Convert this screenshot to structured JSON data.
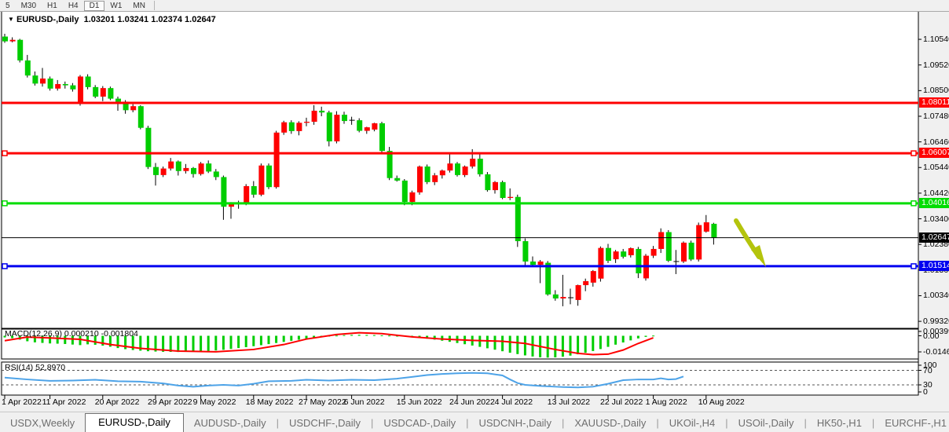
{
  "toolbar": {
    "timeframes": [
      "5",
      "M30",
      "H1",
      "H4",
      "D1",
      "W1",
      "MN"
    ],
    "active_timeframe": "D1"
  },
  "chart": {
    "symbol_title": "EURUSD-,Daily",
    "ohlc_text": "1.03201 1.03241 1.02374 1.02647",
    "dropdown_icon": "down-triangle"
  },
  "colors": {
    "up_candle": "#fe0000",
    "down_candle": "#00cd00",
    "wick": "#000000",
    "hline_red": "#fe0000",
    "hline_green": "#00dd00",
    "hline_blue": "#0000f0",
    "current_price_line": "#000000",
    "current_price_badge": "#000000",
    "macd_hist": "#00cd00",
    "macd_signal": "#fe0000",
    "rsi_line": "#4da3e8",
    "arrow": "#b4c40c",
    "pane_bg": "#ffffff",
    "frame": "#000000"
  },
  "price_axis": {
    "ticks": [
      "1.10540",
      "1.09520",
      "1.08500",
      "1.07480",
      "1.06460",
      "1.05440",
      "1.04420",
      "1.03400",
      "1.02380",
      "1.01360",
      "1.00340",
      "0.99320"
    ]
  },
  "hlines": [
    {
      "price": 1.08011,
      "label": "1.08011",
      "color_key": "hline_red",
      "thickness": 3,
      "handles": []
    },
    {
      "price": 1.06007,
      "label": "1.06007",
      "color_key": "hline_red",
      "thickness": 3,
      "handles": [
        "left",
        "right"
      ]
    },
    {
      "price": 1.04016,
      "label": "1.04016",
      "color_key": "hline_green",
      "thickness": 3,
      "handles": [
        "left",
        "right"
      ]
    },
    {
      "price": 1.02647,
      "label": "1.02647",
      "color_key": "current_price_line",
      "thickness": 1,
      "handles": []
    },
    {
      "price": 1.01514,
      "label": "1.01514",
      "color_key": "hline_blue",
      "thickness": 3,
      "handles": [
        "left",
        "right"
      ]
    }
  ],
  "chart_data": {
    "type": "candlestick",
    "symbol": "EURUSD",
    "period": "Daily",
    "candles_ohlc": [
      [
        1.1065,
        1.1076,
        1.104,
        1.1046
      ],
      [
        1.1046,
        1.1062,
        1.1042,
        1.1052
      ],
      [
        1.1052,
        1.1056,
        1.0962,
        1.097
      ],
      [
        1.097,
        1.0992,
        1.0902,
        1.091
      ],
      [
        1.091,
        1.0926,
        1.087,
        1.0878
      ],
      [
        1.0878,
        1.094,
        1.0866,
        1.0898
      ],
      [
        1.0898,
        1.0906,
        1.085,
        1.0858
      ],
      [
        1.0858,
        1.0892,
        1.085,
        1.0876
      ],
      [
        1.0876,
        1.0886,
        1.0858,
        1.0871
      ],
      [
        1.0871,
        1.088,
        1.0846,
        1.0855
      ],
      [
        1.08,
        1.0912,
        1.079,
        1.0906
      ],
      [
        1.0906,
        1.0915,
        1.0855,
        1.0864
      ],
      [
        1.0864,
        1.0872,
        1.082,
        1.0826
      ],
      [
        1.0826,
        1.0868,
        1.0808,
        1.086
      ],
      [
        1.086,
        1.0866,
        1.0812,
        1.0818
      ],
      [
        1.0818,
        1.0826,
        1.077,
        1.0806
      ],
      [
        1.0806,
        1.0812,
        1.0758,
        1.0772
      ],
      [
        1.0772,
        1.0796,
        1.0764,
        1.0788
      ],
      [
        1.0788,
        1.0792,
        1.0696,
        1.0702
      ],
      [
        1.0702,
        1.071,
        1.0538,
        1.0546
      ],
      [
        1.0546,
        1.0562,
        1.0472,
        1.0514
      ],
      [
        1.0514,
        1.0548,
        1.0506,
        1.054
      ],
      [
        1.054,
        1.0582,
        1.0532,
        1.0568
      ],
      [
        1.0568,
        1.0572,
        1.0512,
        1.053
      ],
      [
        1.053,
        1.0558,
        1.052,
        1.0542
      ],
      [
        1.0542,
        1.0546,
        1.0504,
        1.0518
      ],
      [
        1.0518,
        1.0566,
        1.0512,
        1.056
      ],
      [
        1.056,
        1.0572,
        1.0522,
        1.0528
      ],
      [
        1.0528,
        1.0538,
        1.0494,
        1.0506
      ],
      [
        1.0506,
        1.0512,
        1.0336,
        1.0388
      ],
      [
        1.0388,
        1.0406,
        1.034,
        1.0398
      ],
      [
        1.0398,
        1.0412,
        1.038,
        1.04
      ],
      [
        1.04,
        1.0478,
        1.0394,
        1.047
      ],
      [
        1.047,
        1.049,
        1.0424,
        1.0436
      ],
      [
        1.0436,
        1.056,
        1.043,
        1.0552
      ],
      [
        1.0552,
        1.056,
        1.0458,
        1.0466
      ],
      [
        1.0466,
        1.069,
        1.046,
        1.0683
      ],
      [
        1.0683,
        1.073,
        1.0674,
        1.0724
      ],
      [
        1.0724,
        1.0732,
        1.0678,
        1.0689
      ],
      [
        1.0689,
        1.0728,
        1.0672,
        1.0722
      ],
      [
        1.0722,
        1.0742,
        1.0708,
        1.0726
      ],
      [
        1.0726,
        1.0792,
        1.0714,
        1.077
      ],
      [
        1.077,
        1.0786,
        1.0748,
        1.0763
      ],
      [
        1.0763,
        1.077,
        1.0628,
        1.0648
      ],
      [
        1.0648,
        1.0768,
        1.064,
        1.0754
      ],
      [
        1.0754,
        1.0766,
        1.0718,
        1.0729
      ],
      [
        1.0729,
        1.0746,
        1.0714,
        1.0732
      ],
      [
        1.0732,
        1.074,
        1.0684,
        1.069
      ],
      [
        1.069,
        1.0706,
        1.0678,
        1.0704
      ],
      [
        1.0695,
        1.0722,
        1.0688,
        1.072
      ],
      [
        1.072,
        1.0726,
        1.0598,
        1.061
      ],
      [
        1.061,
        1.0626,
        1.0494,
        1.0502
      ],
      [
        1.0502,
        1.0512,
        1.0488,
        1.0492
      ],
      [
        1.0492,
        1.0498,
        1.0394,
        1.0407
      ],
      [
        1.0407,
        1.0452,
        1.0394,
        1.0445
      ],
      [
        1.0445,
        1.0552,
        1.0436,
        1.0548
      ],
      [
        1.0548,
        1.0556,
        1.0478,
        1.0486
      ],
      [
        1.0486,
        1.0522,
        1.0474,
        1.0513
      ],
      [
        1.0513,
        1.0536,
        1.05,
        1.0532
      ],
      [
        1.0532,
        1.0601,
        1.0524,
        1.056
      ],
      [
        1.056,
        1.0566,
        1.0508,
        1.0514
      ],
      [
        1.0514,
        1.0552,
        1.0506,
        1.0548
      ],
      [
        1.0548,
        1.0617,
        1.054,
        1.0579
      ],
      [
        1.0579,
        1.06,
        1.0508,
        1.0517
      ],
      [
        1.0517,
        1.0526,
        1.0448,
        1.0454
      ],
      [
        1.0454,
        1.049,
        1.044,
        1.0486
      ],
      [
        1.0486,
        1.0492,
        1.0418,
        1.0423
      ],
      [
        1.0423,
        1.0461,
        1.0414,
        1.0427
      ],
      [
        1.0427,
        1.0436,
        1.0228,
        1.0251
      ],
      [
        1.0251,
        1.0262,
        1.0153,
        1.017
      ],
      [
        1.017,
        1.019,
        1.015,
        1.0157
      ],
      [
        1.0157,
        1.0176,
        1.0084,
        1.017
      ],
      [
        1.0165,
        1.0172,
        1.0034,
        1.0039
      ],
      [
        1.0039,
        1.0056,
        1.0014,
        1.0023
      ],
      [
        1.0023,
        1.0117,
        0.9992,
        1.0029
      ],
      [
        1.0029,
        1.0062,
        1.0,
        1.0026
      ],
      [
        1.0017,
        1.0078,
        0.9994,
        1.0076
      ],
      [
        1.0076,
        1.0102,
        1.0052,
        1.0092
      ],
      [
        1.0086,
        1.0136,
        1.007,
        1.0132
      ],
      [
        1.0102,
        1.023,
        1.009,
        1.0224
      ],
      [
        1.0224,
        1.024,
        1.0164,
        1.0173
      ],
      [
        1.0179,
        1.0216,
        1.0164,
        1.021
      ],
      [
        1.021,
        1.022,
        1.0182,
        1.0189
      ],
      [
        1.0195,
        1.0226,
        1.0186,
        1.0223
      ],
      [
        1.022,
        1.0228,
        1.0104,
        1.0123
      ],
      [
        1.0103,
        1.02,
        1.0094,
        1.0193
      ],
      [
        1.0193,
        1.0232,
        1.0184,
        1.022
      ],
      [
        1.022,
        1.0302,
        1.0204,
        1.0287
      ],
      [
        1.0287,
        1.0295,
        1.0168,
        1.0173
      ],
      [
        1.0173,
        1.0216,
        1.012,
        1.017
      ],
      [
        1.017,
        1.025,
        1.0164,
        1.0245
      ],
      [
        1.0245,
        1.0253,
        1.0172,
        1.0178
      ],
      [
        1.0178,
        1.0325,
        1.017,
        1.0315
      ],
      [
        1.0289,
        1.0355,
        1.0285,
        1.0326
      ],
      [
        1.03201,
        1.03241,
        1.02374,
        1.02647
      ]
    ],
    "macd": {
      "label": "MACD(12,26,9)",
      "values_text": "0.000210 -0.001804",
      "axis_labels": [
        "0.00399",
        "0.00",
        "-0.014693"
      ],
      "hist": [
        -0.0015,
        -0.0022,
        -0.0035,
        -0.005,
        -0.006,
        -0.0065,
        -0.007,
        -0.0072,
        -0.0075,
        -0.008,
        -0.0085,
        -0.0078,
        -0.0082,
        -0.009,
        -0.01,
        -0.0112,
        -0.0122,
        -0.013,
        -0.0136,
        -0.0141,
        -0.0144,
        -0.0146,
        -0.0147,
        -0.0148,
        -0.0147,
        -0.0145,
        -0.0143,
        -0.0139,
        -0.0134,
        -0.0128,
        -0.012,
        -0.0112,
        -0.0104,
        -0.0095,
        -0.0086,
        -0.0076,
        -0.0066,
        -0.0056,
        -0.0046,
        -0.0036,
        -0.0027,
        -0.0018,
        -0.001,
        -0.0004,
        0.0002,
        0.0006,
        0.0008,
        0.0009,
        0.0008,
        0.0006,
        0.0004,
        0.0002,
        0.0,
        -0.0004,
        -0.001,
        -0.0018,
        -0.0026,
        -0.0035,
        -0.0045,
        -0.0055,
        -0.0066,
        -0.0077,
        -0.0089,
        -0.0101,
        -0.0114,
        -0.0127,
        -0.0141,
        -0.0155,
        -0.0167,
        -0.0179,
        -0.0189,
        -0.0196,
        -0.0199,
        -0.0197,
        -0.0191,
        -0.0181,
        -0.0169,
        -0.0155,
        -0.0139,
        -0.0121,
        -0.0101,
        -0.0081,
        -0.0061,
        -0.0042,
        -0.0024,
        -0.001,
        0.0002
      ],
      "signal_points": [
        [
          0,
          -0.0045
        ],
        [
          3,
          -0.0012
        ],
        [
          6,
          -0.002
        ],
        [
          10,
          -0.0032
        ],
        [
          14,
          -0.008
        ],
        [
          18,
          -0.0115
        ],
        [
          23,
          -0.014
        ],
        [
          28,
          -0.0146
        ],
        [
          33,
          -0.0125
        ],
        [
          37,
          -0.008
        ],
        [
          40,
          -0.003
        ],
        [
          44,
          0.0012
        ],
        [
          47,
          0.0028
        ],
        [
          50,
          0.002
        ],
        [
          54,
          -0.001
        ],
        [
          58,
          -0.003
        ],
        [
          62,
          -0.0042
        ],
        [
          66,
          -0.005
        ],
        [
          69,
          -0.007
        ],
        [
          73,
          -0.0125
        ],
        [
          76,
          -0.016
        ],
        [
          78,
          -0.0172
        ],
        [
          80,
          -0.0168
        ],
        [
          82,
          -0.013
        ],
        [
          84,
          -0.007
        ],
        [
          86,
          -0.0018
        ]
      ]
    },
    "rsi": {
      "label": "RSI(14)",
      "value_text": "52.8970",
      "axis_labels": [
        "100",
        "70",
        "30",
        "0"
      ],
      "levels": [
        70,
        30
      ],
      "points": [
        [
          0,
          50
        ],
        [
          3,
          45
        ],
        [
          6,
          41
        ],
        [
          9,
          42
        ],
        [
          12,
          44
        ],
        [
          15,
          40
        ],
        [
          18,
          39
        ],
        [
          21,
          34
        ],
        [
          23,
          28
        ],
        [
          25,
          25
        ],
        [
          27,
          28
        ],
        [
          29,
          30
        ],
        [
          31,
          28
        ],
        [
          33,
          33
        ],
        [
          35,
          40
        ],
        [
          38,
          41
        ],
        [
          40,
          44
        ],
        [
          43,
          42
        ],
        [
          46,
          44
        ],
        [
          49,
          43
        ],
        [
          52,
          47
        ],
        [
          54,
          52
        ],
        [
          56,
          57
        ],
        [
          58,
          60
        ],
        [
          60,
          62
        ],
        [
          62,
          63
        ],
        [
          64,
          62
        ],
        [
          66,
          56
        ],
        [
          67,
          45
        ],
        [
          68,
          35
        ],
        [
          69,
          30
        ],
        [
          71,
          27
        ],
        [
          73,
          25
        ],
        [
          74,
          24
        ],
        [
          76,
          23
        ],
        [
          78,
          25
        ],
        [
          80,
          33
        ],
        [
          82,
          43
        ],
        [
          84,
          45
        ],
        [
          86,
          45
        ],
        [
          87,
          48
        ],
        [
          88,
          45
        ],
        [
          89,
          46
        ],
        [
          90,
          53
        ]
      ]
    }
  },
  "date_axis": {
    "ticks": [
      {
        "bar": 0,
        "label": "1 Apr 2022"
      },
      {
        "bar": 6,
        "label": "11 Apr 2022"
      },
      {
        "bar": 13,
        "label": "20 Apr 2022"
      },
      {
        "bar": 20,
        "label": "29 Apr 2022"
      },
      {
        "bar": 26,
        "label": "9 May 2022"
      },
      {
        "bar": 33,
        "label": "18 May 2022"
      },
      {
        "bar": 40,
        "label": "27 May 2022"
      },
      {
        "bar": 46,
        "label": "6 Jun 2022"
      },
      {
        "bar": 53,
        "label": "15 Jun 2022"
      },
      {
        "bar": 60,
        "label": "24 Jun 2022"
      },
      {
        "bar": 66,
        "label": "4 Jul 2022"
      },
      {
        "bar": 73,
        "label": "13 Jul 2022"
      },
      {
        "bar": 80,
        "label": "22 Jul 2022"
      },
      {
        "bar": 86,
        "label": "1 Aug 2022"
      },
      {
        "bar": 93,
        "label": "10 Aug 2022"
      }
    ]
  },
  "annotation_arrow": {
    "shape": "down-right-arrow",
    "meaning": "projected-move-down"
  },
  "tabs": {
    "items": [
      "USDX,Weekly",
      "EURUSD-,Daily",
      "AUDUSD-,Daily",
      "USDCHF-,Daily",
      "USDCAD-,Daily",
      "USDCNH-,Daily",
      "XAUUSD-,Daily",
      "UKOil-,H4",
      "USOil-,Daily",
      "HK50-,H1",
      "EURCHF-,H1",
      "USOil-,H4"
    ],
    "active": "EURUSD-,Daily",
    "scroll_left_icon": "left-triangle",
    "scroll_right_icon": "right-triangle"
  }
}
